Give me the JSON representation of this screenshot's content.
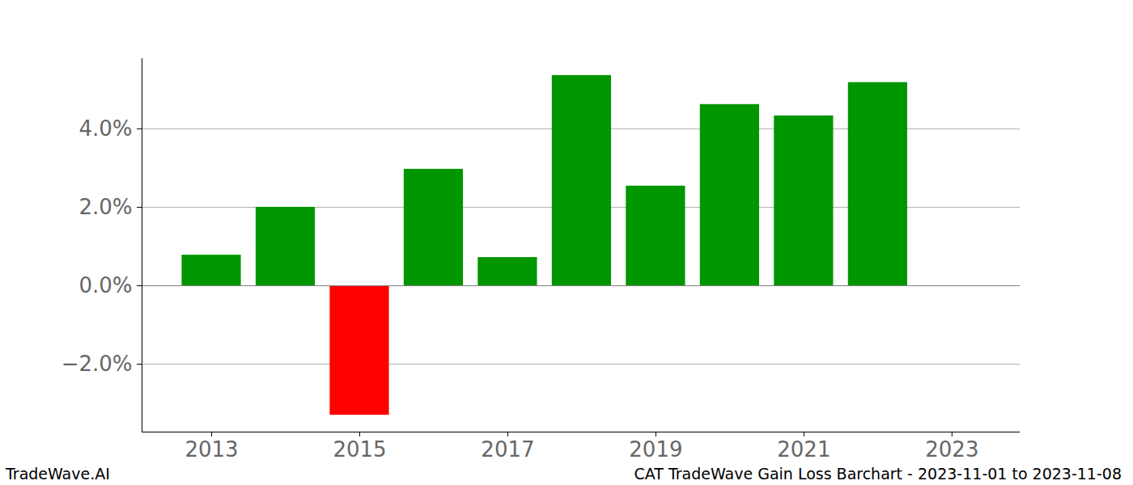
{
  "chart_data": {
    "type": "bar",
    "title": "CAT TradeWave Gain Loss Barchart - 2023-11-01 to 2023-11-08",
    "annotations": [
      "TradeWave.AI"
    ],
    "x": [
      2013,
      2014,
      2015,
      2016,
      2017,
      2018,
      2019,
      2020,
      2021,
      2022
    ],
    "values": [
      0.78,
      2.0,
      -3.3,
      2.97,
      0.72,
      5.36,
      2.54,
      4.62,
      4.33,
      5.18
    ],
    "colors": [
      "#009600",
      "#009600",
      "#ff0000",
      "#009600",
      "#009600",
      "#009600",
      "#009600",
      "#009600",
      "#009600",
      "#009600"
    ],
    "xlim": [
      2012.06,
      2023.92
    ],
    "xticks": [
      2013,
      2015,
      2017,
      2019,
      2021,
      2023
    ],
    "ylim": [
      -3.73,
      5.79
    ],
    "yticks": [
      {
        "value": -2,
        "label": "−2.0%"
      },
      {
        "value": 0,
        "label": "0.0%"
      },
      {
        "value": 2,
        "label": "2.0%"
      },
      {
        "value": 4,
        "label": "4.0%"
      }
    ],
    "grid": true
  }
}
